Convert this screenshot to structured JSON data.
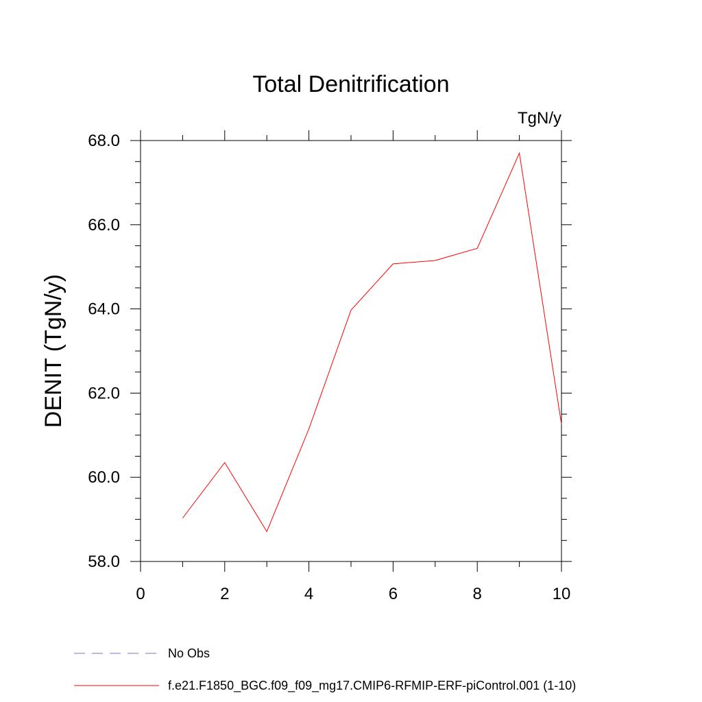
{
  "chart_data": {
    "type": "line",
    "title": "Total Denitrification",
    "units": "TgN/y",
    "xlabel": "",
    "ylabel": "DENIT  (TgN/y)",
    "xlim": [
      0,
      10
    ],
    "ylim": [
      58,
      68
    ],
    "x_ticks": [
      "0",
      "2",
      "4",
      "6",
      "8",
      "10"
    ],
    "y_ticks": [
      "58.0",
      "60.0",
      "62.0",
      "64.0",
      "66.0",
      "68.0"
    ],
    "x_tick_values": [
      0,
      2,
      4,
      6,
      8,
      10
    ],
    "y_tick_values": [
      58,
      60,
      62,
      64,
      66,
      68
    ],
    "x_minor_step": 1,
    "y_minor_step": 0.5,
    "grid": false,
    "legend_position": "bottom",
    "series": [
      {
        "name": "f.e21.F1850_BGC.f09_f09_mg17.CMIP6-RFMIP-ERF-piControl.001 (1-10)",
        "color": "#ff0000",
        "style": "solid",
        "x": [
          1,
          2,
          3,
          4,
          5,
          6,
          7,
          8,
          9,
          10
        ],
        "y": [
          59.03,
          60.35,
          58.71,
          61.15,
          63.97,
          65.07,
          65.15,
          65.44,
          67.7,
          61.26
        ]
      }
    ],
    "legend": [
      {
        "label": "No Obs",
        "color": "#7f6fbf",
        "style": "dashed"
      },
      {
        "label": "f.e21.F1850_BGC.f09_f09_mg17.CMIP6-RFMIP-ERF-piControl.001 (1-10)",
        "color": "#ff0000",
        "style": "solid"
      }
    ]
  }
}
